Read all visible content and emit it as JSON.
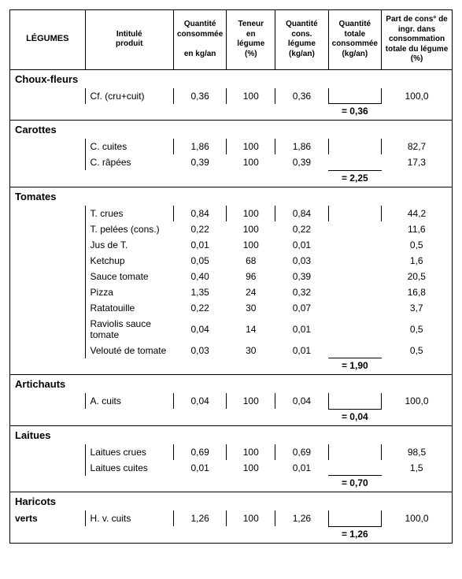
{
  "columns": {
    "legumes": "LÉGUMES",
    "produit": "Intitulé\nproduit",
    "qte_cons": "Quantité\nconsommée",
    "qte_cons_unit": "en kg/an",
    "teneur": "Teneur\nen\nlégume\n(%)",
    "qte_leg": "Quantité\ncons.\nlégume\n(kg/an)",
    "qte_tot": "Quantité\ntotale\nconsommée\n(kg/an)",
    "part": "Part de cons° de\ningr. dans\nconsommation\ntotale du légume\n(%)"
  },
  "groups": [
    {
      "name": "Choux-fleurs",
      "rows": [
        {
          "produit": "Cf. (cru+cuit)",
          "qte": "0,36",
          "teneur": "100",
          "qleg": "0,36",
          "part": "100,0"
        }
      ],
      "total": "= 0,36"
    },
    {
      "name": "Carottes",
      "rows": [
        {
          "produit": "C. cuites",
          "qte": "1,86",
          "teneur": "100",
          "qleg": "1,86",
          "part": "82,7"
        },
        {
          "produit": "C. râpées",
          "qte": "0,39",
          "teneur": "100",
          "qleg": "0,39",
          "part": "17,3"
        }
      ],
      "total": "= 2,25"
    },
    {
      "name": "Tomates",
      "rows": [
        {
          "produit": "T. crues",
          "qte": "0,84",
          "teneur": "100",
          "qleg": "0,84",
          "part": "44,2"
        },
        {
          "produit": "T. pelées (cons.)",
          "qte": "0,22",
          "teneur": "100",
          "qleg": "0,22",
          "part": "11,6"
        },
        {
          "produit": "Jus de T.",
          "qte": "0,01",
          "teneur": "100",
          "qleg": "0,01",
          "part": "0,5"
        },
        {
          "produit": "Ketchup",
          "qte": "0,05",
          "teneur": "68",
          "qleg": "0,03",
          "part": "1,6"
        },
        {
          "produit": "Sauce tomate",
          "qte": "0,40",
          "teneur": "96",
          "qleg": "0,39",
          "part": "20,5"
        },
        {
          "produit": "Pizza",
          "qte": "1,35",
          "teneur": "24",
          "qleg": "0,32",
          "part": "16,8"
        },
        {
          "produit": "Ratatouille",
          "qte": "0,22",
          "teneur": "30",
          "qleg": "0,07",
          "part": "3,7"
        },
        {
          "produit": "Raviolis sauce tomate",
          "qte": "0,04",
          "teneur": "14",
          "qleg": "0,01",
          "part": "0,5"
        },
        {
          "produit": "Velouté de tomate",
          "qte": "0,03",
          "teneur": "30",
          "qleg": "0,01",
          "part": "0,5"
        }
      ],
      "total": "= 1,90"
    },
    {
      "name": "Artichauts",
      "rows": [
        {
          "produit": "A. cuits",
          "qte": "0,04",
          "teneur": "100",
          "qleg": "0,04",
          "part": "100,0"
        }
      ],
      "total": "= 0,04"
    },
    {
      "name": "Laitues",
      "rows": [
        {
          "produit": "Laitues crues",
          "qte": "0,69",
          "teneur": "100",
          "qleg": "0,69",
          "part": "98,5"
        },
        {
          "produit": "Laitues cuites",
          "qte": "0,01",
          "teneur": "100",
          "qleg": "0,01",
          "part": "1,5"
        }
      ],
      "total": "= 0,70"
    },
    {
      "name": "Haricots verts",
      "name_split": [
        "Haricots",
        "verts"
      ],
      "rows": [
        {
          "produit": "H. v. cuits",
          "qte": "1,26",
          "teneur": "100",
          "qleg": "1,26",
          "part": "100,0"
        }
      ],
      "total": "= 1,26"
    }
  ],
  "style": {
    "font_family": "Arial",
    "font_size_body": 12,
    "font_size_header": 10,
    "border_color": "#000000",
    "background": "#ffffff",
    "col_widths_pct": [
      17,
      20,
      12,
      11,
      12,
      12,
      16
    ]
  }
}
